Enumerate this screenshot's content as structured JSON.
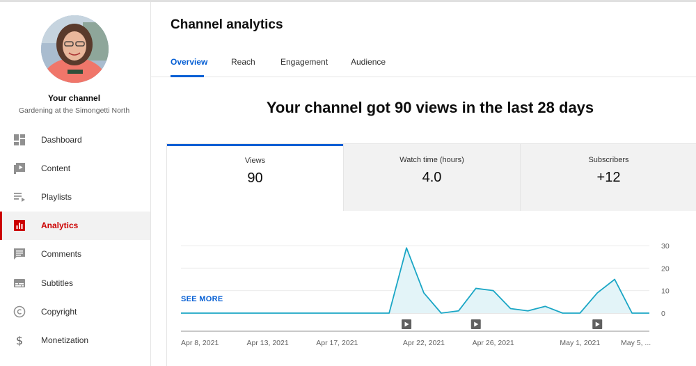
{
  "sidebar": {
    "channel_title": "Your channel",
    "channel_name": "Gardening at the Simongetti North",
    "items": [
      {
        "label": "Dashboard",
        "icon": "dashboard-icon"
      },
      {
        "label": "Content",
        "icon": "content-icon"
      },
      {
        "label": "Playlists",
        "icon": "playlists-icon"
      },
      {
        "label": "Analytics",
        "icon": "analytics-icon",
        "active": true
      },
      {
        "label": "Comments",
        "icon": "comments-icon"
      },
      {
        "label": "Subtitles",
        "icon": "subtitles-icon"
      },
      {
        "label": "Copyright",
        "icon": "copyright-icon"
      },
      {
        "label": "Monetization",
        "icon": "monetization-icon"
      }
    ]
  },
  "main": {
    "title": "Channel analytics",
    "tabs": [
      {
        "label": "Overview",
        "active": true
      },
      {
        "label": "Reach"
      },
      {
        "label": "Engagement"
      },
      {
        "label": "Audience"
      }
    ],
    "headline": "Your channel got 90 views in the last 28 days",
    "metrics": [
      {
        "label": "Views",
        "value": "90",
        "active": true
      },
      {
        "label": "Watch time (hours)",
        "value": "4.0"
      },
      {
        "label": "Subscribers",
        "value": "+12"
      }
    ],
    "see_more": "SEE MORE"
  },
  "colors": {
    "accent": "#065fd4",
    "active_nav": "#cc0000",
    "line": "#1aa6c5",
    "fill": "#e3f4f8"
  },
  "chart_data": {
    "type": "area",
    "x": [
      "Apr 8, 2021",
      "Apr 9",
      "Apr 10",
      "Apr 11",
      "Apr 12",
      "Apr 13, 2021",
      "Apr 14",
      "Apr 15",
      "Apr 16",
      "Apr 17, 2021",
      "Apr 18",
      "Apr 19",
      "Apr 20",
      "Apr 21",
      "Apr 22, 2021",
      "Apr 23",
      "Apr 24",
      "Apr 25",
      "Apr 26, 2021",
      "Apr 27",
      "Apr 28",
      "Apr 29",
      "Apr 30",
      "May 1, 2021",
      "May 2",
      "May 3",
      "May 4",
      "May 5, 2021"
    ],
    "values": [
      0,
      0,
      0,
      0,
      0,
      0,
      0,
      0,
      0,
      0,
      0,
      0,
      0,
      29,
      9,
      0,
      1,
      11,
      10,
      2,
      1,
      3,
      0,
      0,
      9,
      15,
      0,
      0
    ],
    "x_tick_labels": [
      {
        "index": 0,
        "label": "Apr 8, 2021"
      },
      {
        "index": 5,
        "label": "Apr 13, 2021"
      },
      {
        "index": 9,
        "label": "Apr 17, 2021"
      },
      {
        "index": 14,
        "label": "Apr 22, 2021"
      },
      {
        "index": 18,
        "label": "Apr 26, 2021"
      },
      {
        "index": 23,
        "label": "May 1, 2021"
      },
      {
        "index": 27,
        "label": "May 5, ..."
      }
    ],
    "y_ticks": [
      "0",
      "10",
      "20",
      "30"
    ],
    "ylim": [
      0,
      30
    ],
    "video_markers": [
      13,
      17,
      24
    ],
    "grid": true
  }
}
